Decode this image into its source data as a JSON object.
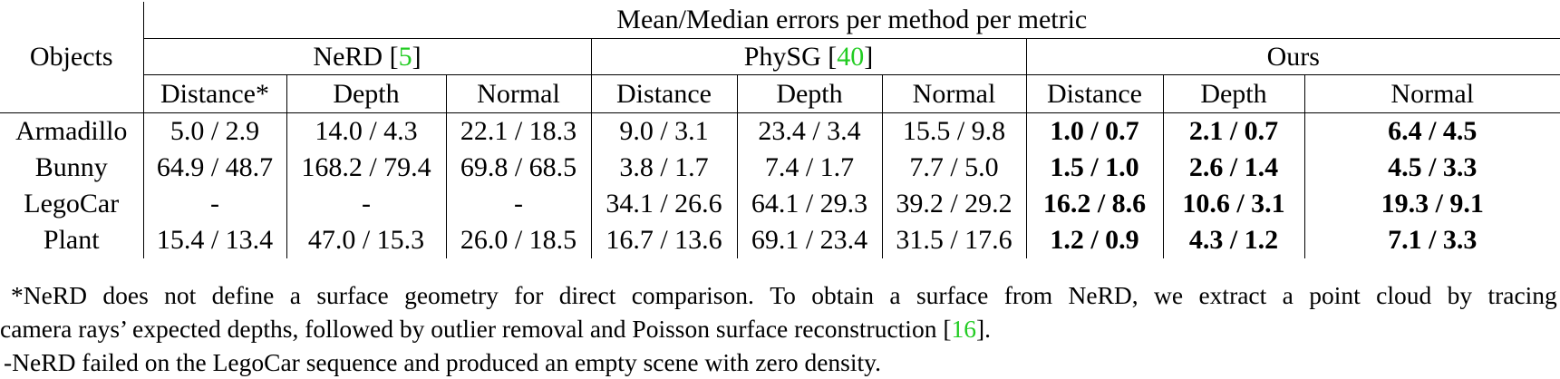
{
  "table": {
    "objects_header": "Objects",
    "super_header": "Mean/Median errors per method per metric",
    "methods": [
      {
        "name": "NeRD",
        "ref": "5",
        "metrics": [
          "Distance*",
          "Depth",
          "Normal"
        ]
      },
      {
        "name": "PhySG",
        "ref": "40",
        "metrics": [
          "Distance",
          "Depth",
          "Normal"
        ]
      },
      {
        "name": "Ours",
        "ref": "",
        "metrics": [
          "Distance",
          "Depth",
          "Normal"
        ]
      }
    ],
    "rows": [
      {
        "object": "Armadillo",
        "values": [
          "5.0 / 2.9",
          "14.0 / 4.3",
          "22.1 / 18.3",
          "9.0 / 3.1",
          "23.4 / 3.4",
          "15.5 / 9.8",
          "1.0 / 0.7",
          "2.1 / 0.7",
          "6.4 / 4.5"
        ]
      },
      {
        "object": "Bunny",
        "values": [
          "64.9 / 48.7",
          "168.2 / 79.4",
          "69.8 / 68.5",
          "3.8 / 1.7",
          "7.4 / 1.7",
          "7.7 / 5.0",
          "1.5 / 1.0",
          "2.6 / 1.4",
          "4.5 / 3.3"
        ]
      },
      {
        "object": "LegoCar",
        "values": [
          "-",
          "-",
          "-",
          "34.1 / 26.6",
          "64.1 / 29.3",
          "39.2 / 29.2",
          "16.2 / 8.6",
          "10.6 / 3.1",
          "19.3 / 9.1"
        ]
      },
      {
        "object": "Plant",
        "values": [
          "15.4 / 13.4",
          "47.0 / 15.3",
          "26.0 / 18.5",
          "16.7 / 13.6",
          "69.1 / 23.4",
          "31.5 / 17.6",
          "1.2 / 0.9",
          "4.3 / 1.2",
          "7.1 / 3.3"
        ]
      }
    ]
  },
  "notes": {
    "note1_words": [
      "*NeRD",
      "does",
      "not",
      "define",
      "a",
      "surface",
      "geometry",
      "for",
      "direct",
      "comparison.",
      "To",
      "obtain",
      "a",
      "surface",
      "from",
      "NeRD,",
      "we",
      "extract",
      "a",
      "point",
      "cloud",
      "by",
      "tracing"
    ],
    "note1_line2_text": "camera rays’ expected depths, followed by outlier removal and Poisson surface reconstruction [",
    "note1_line2_ref": "16",
    "note1_line2_end": "].",
    "note2": "-NeRD failed on the LegoCar sequence and produced an empty scene with zero density."
  }
}
